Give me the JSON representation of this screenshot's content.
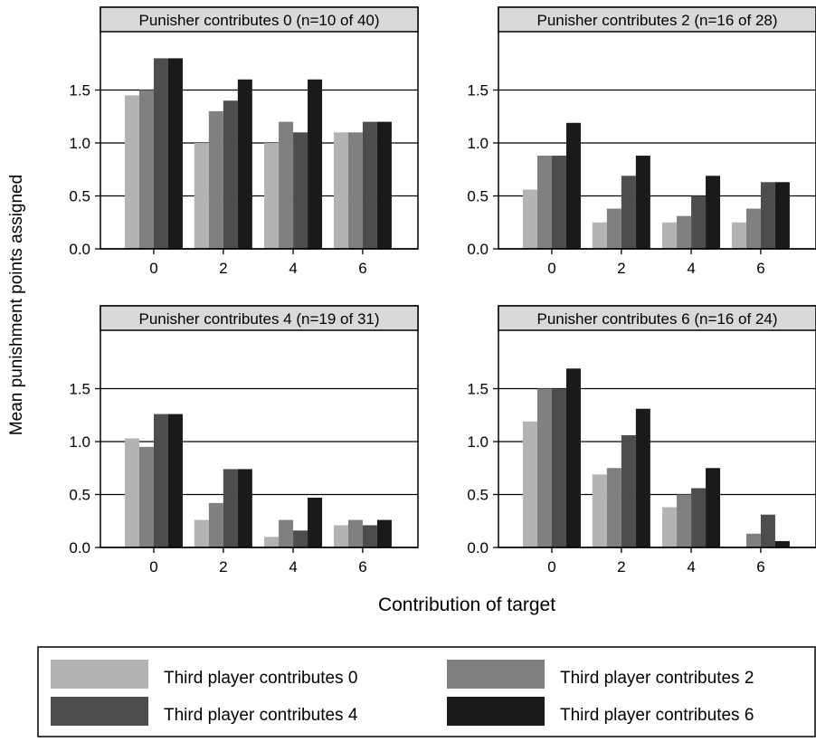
{
  "figure": {
    "ylabel": "Mean punishment points assigned",
    "xlabel": "Contribution of target"
  },
  "legend": {
    "items": [
      {
        "label": "Third player contributes 0",
        "color": "#b3b3b3"
      },
      {
        "label": "Third player contributes 2",
        "color": "#808080"
      },
      {
        "label": "Third player contributes 4",
        "color": "#4d4d4d"
      },
      {
        "label": "Third player contributes 6",
        "color": "#1a1a1a"
      }
    ]
  },
  "chart_data": [
    {
      "type": "bar",
      "title": "Punisher contributes 0 (n=10 of 40)",
      "categories": [
        "0",
        "2",
        "4",
        "6"
      ],
      "ylim": [
        0,
        2.0
      ],
      "yticks": [
        "0.0",
        "0.5",
        "1.0",
        "1.5"
      ],
      "grid": true,
      "series": [
        {
          "name": "Third player contributes 0",
          "values": [
            1.45,
            1.0,
            1.0,
            1.1
          ]
        },
        {
          "name": "Third player contributes 2",
          "values": [
            1.5,
            1.3,
            1.2,
            1.1
          ]
        },
        {
          "name": "Third player contributes 4",
          "values": [
            1.8,
            1.4,
            1.1,
            1.2
          ]
        },
        {
          "name": "Third player contributes 6",
          "values": [
            1.8,
            1.6,
            1.6,
            1.2
          ]
        }
      ]
    },
    {
      "type": "bar",
      "title": "Punisher contributes 2 (n=16 of 28)",
      "categories": [
        "0",
        "2",
        "4",
        "6"
      ],
      "ylim": [
        0,
        2.0
      ],
      "yticks": [
        "0.0",
        "0.5",
        "1.0",
        "1.5"
      ],
      "grid": true,
      "series": [
        {
          "name": "Third player contributes 0",
          "values": [
            0.56,
            0.25,
            0.25,
            0.25
          ]
        },
        {
          "name": "Third player contributes 2",
          "values": [
            0.88,
            0.38,
            0.31,
            0.38
          ]
        },
        {
          "name": "Third player contributes 4",
          "values": [
            0.88,
            0.69,
            0.5,
            0.63
          ]
        },
        {
          "name": "Third player contributes 6",
          "values": [
            1.19,
            0.88,
            0.69,
            0.63
          ]
        }
      ]
    },
    {
      "type": "bar",
      "title": "Punisher contributes 4 (n=19 of 31)",
      "categories": [
        "0",
        "2",
        "4",
        "6"
      ],
      "ylim": [
        0,
        2.0
      ],
      "yticks": [
        "0.0",
        "0.5",
        "1.0",
        "1.5"
      ],
      "grid": true,
      "series": [
        {
          "name": "Third player contributes 0",
          "values": [
            1.03,
            0.26,
            0.1,
            0.21
          ]
        },
        {
          "name": "Third player contributes 2",
          "values": [
            0.95,
            0.42,
            0.26,
            0.26
          ]
        },
        {
          "name": "Third player contributes 4",
          "values": [
            1.26,
            0.74,
            0.16,
            0.21
          ]
        },
        {
          "name": "Third player contributes 6",
          "values": [
            1.26,
            0.74,
            0.47,
            0.26
          ]
        }
      ]
    },
    {
      "type": "bar",
      "title": "Punisher contributes 6 (n=16 of 24)",
      "categories": [
        "0",
        "2",
        "4",
        "6"
      ],
      "ylim": [
        0,
        2.0
      ],
      "yticks": [
        "0.0",
        "0.5",
        "1.0",
        "1.5"
      ],
      "grid": true,
      "series": [
        {
          "name": "Third player contributes 0",
          "values": [
            1.19,
            0.69,
            0.38,
            0.0
          ]
        },
        {
          "name": "Third player contributes 2",
          "values": [
            1.5,
            0.75,
            0.5,
            0.13
          ]
        },
        {
          "name": "Third player contributes 4",
          "values": [
            1.5,
            1.06,
            0.56,
            0.31
          ]
        },
        {
          "name": "Third player contributes 6",
          "values": [
            1.69,
            1.31,
            0.75,
            0.06
          ]
        }
      ]
    }
  ]
}
